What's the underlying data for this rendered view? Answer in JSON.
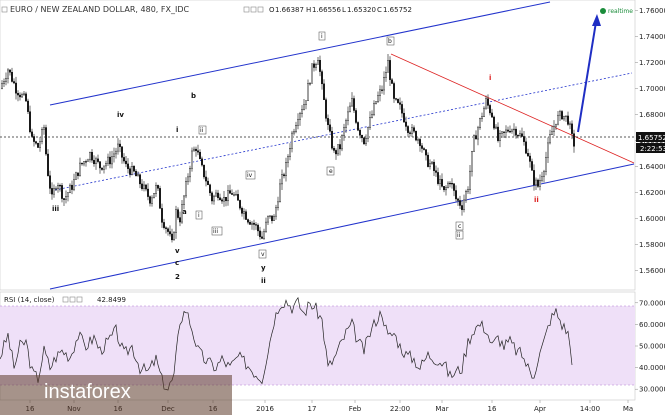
{
  "header": {
    "symbol": "EURO / NEW ZEALAND DOLLAR, 480, FX_IDC",
    "open_label": "O",
    "open": "1.66387",
    "high_label": "H",
    "high": "1.66556",
    "low_label": "L",
    "low": "1.65320",
    "close_label": "C",
    "close": "1.65752"
  },
  "realtime_label": "realtime",
  "price_badge": "1.65752",
  "time_badge": "2:22:53",
  "rsi": {
    "label": "RSI (14, close)",
    "value": "42.8499"
  },
  "watermark": "instaforex",
  "colors": {
    "channel": "#2233cc",
    "red_line": "#dd2222",
    "rsi_band": "#efe0f8",
    "candle": "#111111",
    "realtime_dot": "#1a8c3a"
  },
  "chart_data": {
    "type": "candlestick",
    "y_ticks": [
      "1.76000",
      "1.74000",
      "1.72000",
      "1.70000",
      "1.68000",
      "1.66000",
      "1.64000",
      "1.62000",
      "1.60000",
      "1.58000",
      "1.56000"
    ],
    "ylim": [
      1.545,
      1.765
    ],
    "rsi_ticks": [
      "70.0000",
      "60.0000",
      "50.0000",
      "40.0000",
      "30.0000"
    ],
    "rsi_lim": [
      25,
      75
    ],
    "rsi_band": [
      30,
      70
    ],
    "x_ticks": [
      "16",
      "Nov",
      "16",
      "Dec",
      "16",
      "2016",
      "17",
      "Feb",
      "22:00",
      "Mar",
      "16",
      "Apr",
      "14:00",
      "Ma"
    ],
    "last_price": 1.65752,
    "price_path": [
      [
        0,
        1.7
      ],
      [
        8,
        1.715
      ],
      [
        16,
        1.7
      ],
      [
        26,
        1.69
      ],
      [
        32,
        1.66
      ],
      [
        38,
        1.655
      ],
      [
        44,
        1.67
      ],
      [
        47,
        1.64
      ],
      [
        52,
        1.615
      ],
      [
        57,
        1.63
      ],
      [
        64,
        1.615
      ],
      [
        72,
        1.625
      ],
      [
        80,
        1.64
      ],
      [
        90,
        1.65
      ],
      [
        100,
        1.64
      ],
      [
        110,
        1.645
      ],
      [
        118,
        1.655
      ],
      [
        126,
        1.64
      ],
      [
        134,
        1.635
      ],
      [
        142,
        1.625
      ],
      [
        150,
        1.615
      ],
      [
        157,
        1.625
      ],
      [
        162,
        1.6
      ],
      [
        168,
        1.59
      ],
      [
        172,
        1.58
      ],
      [
        176,
        1.605
      ],
      [
        180,
        1.6
      ],
      [
        186,
        1.625
      ],
      [
        192,
        1.65
      ],
      [
        196,
        1.655
      ],
      [
        201,
        1.64
      ],
      [
        206,
        1.63
      ],
      [
        212,
        1.615
      ],
      [
        218,
        1.62
      ],
      [
        224,
        1.615
      ],
      [
        232,
        1.62
      ],
      [
        240,
        1.61
      ],
      [
        248,
        1.6
      ],
      [
        255,
        1.595
      ],
      [
        262,
        1.585
      ],
      [
        268,
        1.6
      ],
      [
        274,
        1.6
      ],
      [
        280,
        1.625
      ],
      [
        286,
        1.64
      ],
      [
        292,
        1.665
      ],
      [
        298,
        1.68
      ],
      [
        305,
        1.69
      ],
      [
        312,
        1.715
      ],
      [
        318,
        1.725
      ],
      [
        322,
        1.7
      ],
      [
        328,
        1.67
      ],
      [
        334,
        1.65
      ],
      [
        340,
        1.655
      ],
      [
        346,
        1.675
      ],
      [
        352,
        1.69
      ],
      [
        358,
        1.67
      ],
      [
        364,
        1.66
      ],
      [
        370,
        1.675
      ],
      [
        376,
        1.69
      ],
      [
        382,
        1.7
      ],
      [
        388,
        1.72
      ],
      [
        394,
        1.69
      ],
      [
        400,
        1.685
      ],
      [
        408,
        1.67
      ],
      [
        414,
        1.665
      ],
      [
        420,
        1.66
      ],
      [
        426,
        1.645
      ],
      [
        432,
        1.64
      ],
      [
        438,
        1.63
      ],
      [
        444,
        1.62
      ],
      [
        450,
        1.63
      ],
      [
        456,
        1.615
      ],
      [
        462,
        1.61
      ],
      [
        468,
        1.625
      ],
      [
        474,
        1.66
      ],
      [
        480,
        1.675
      ],
      [
        486,
        1.69
      ],
      [
        492,
        1.68
      ],
      [
        498,
        1.66
      ],
      [
        504,
        1.665
      ],
      [
        510,
        1.67
      ],
      [
        516,
        1.668
      ],
      [
        522,
        1.662
      ],
      [
        528,
        1.65
      ],
      [
        533,
        1.63
      ],
      [
        538,
        1.625
      ],
      [
        544,
        1.64
      ],
      [
        550,
        1.662
      ],
      [
        556,
        1.676
      ],
      [
        562,
        1.68
      ],
      [
        568,
        1.676
      ],
      [
        572,
        1.662
      ],
      [
        574,
        1.6575
      ]
    ],
    "rsi_path": [
      [
        0,
        45
      ],
      [
        8,
        55
      ],
      [
        14,
        40
      ],
      [
        20,
        50
      ],
      [
        26,
        52
      ],
      [
        32,
        38
      ],
      [
        38,
        35
      ],
      [
        44,
        48
      ],
      [
        50,
        40
      ],
      [
        56,
        45
      ],
      [
        62,
        48
      ],
      [
        70,
        45
      ],
      [
        78,
        55
      ],
      [
        86,
        50
      ],
      [
        94,
        54
      ],
      [
        100,
        48
      ],
      [
        108,
        52
      ],
      [
        116,
        57
      ],
      [
        124,
        46
      ],
      [
        132,
        50
      ],
      [
        140,
        40
      ],
      [
        148,
        38
      ],
      [
        156,
        44
      ],
      [
        162,
        34
      ],
      [
        168,
        30
      ],
      [
        174,
        36
      ],
      [
        180,
        62
      ],
      [
        186,
        67
      ],
      [
        192,
        58
      ],
      [
        198,
        48
      ],
      [
        204,
        44
      ],
      [
        210,
        42
      ],
      [
        216,
        40
      ],
      [
        222,
        44
      ],
      [
        230,
        40
      ],
      [
        238,
        45
      ],
      [
        246,
        42
      ],
      [
        254,
        38
      ],
      [
        262,
        35
      ],
      [
        268,
        48
      ],
      [
        274,
        62
      ],
      [
        280,
        70
      ],
      [
        286,
        71
      ],
      [
        292,
        68
      ],
      [
        298,
        70
      ],
      [
        304,
        65
      ],
      [
        310,
        70
      ],
      [
        316,
        67
      ],
      [
        322,
        62
      ],
      [
        328,
        40
      ],
      [
        334,
        44
      ],
      [
        340,
        50
      ],
      [
        346,
        56
      ],
      [
        352,
        60
      ],
      [
        358,
        52
      ],
      [
        364,
        48
      ],
      [
        370,
        56
      ],
      [
        376,
        62
      ],
      [
        382,
        66
      ],
      [
        388,
        54
      ],
      [
        394,
        56
      ],
      [
        400,
        50
      ],
      [
        406,
        46
      ],
      [
        414,
        44
      ],
      [
        420,
        40
      ],
      [
        428,
        46
      ],
      [
        436,
        44
      ],
      [
        444,
        42
      ],
      [
        450,
        36
      ],
      [
        456,
        38
      ],
      [
        462,
        40
      ],
      [
        468,
        52
      ],
      [
        474,
        58
      ],
      [
        480,
        60
      ],
      [
        486,
        58
      ],
      [
        492,
        50
      ],
      [
        498,
        54
      ],
      [
        504,
        50
      ],
      [
        510,
        52
      ],
      [
        516,
        48
      ],
      [
        522,
        46
      ],
      [
        528,
        40
      ],
      [
        533,
        36
      ],
      [
        538,
        44
      ],
      [
        544,
        52
      ],
      [
        550,
        62
      ],
      [
        556,
        66
      ],
      [
        562,
        60
      ],
      [
        568,
        56
      ],
      [
        572,
        44
      ]
    ]
  },
  "annotations": {
    "circled": [
      "i",
      "ii",
      "iii",
      "iv",
      "v",
      "a",
      "b",
      "c",
      "e"
    ],
    "black_labels": [
      "iv",
      "b",
      "i",
      "iii",
      "a",
      "v",
      "c",
      "2",
      "y",
      "ii"
    ],
    "red_labels": [
      "i",
      "ii"
    ]
  }
}
